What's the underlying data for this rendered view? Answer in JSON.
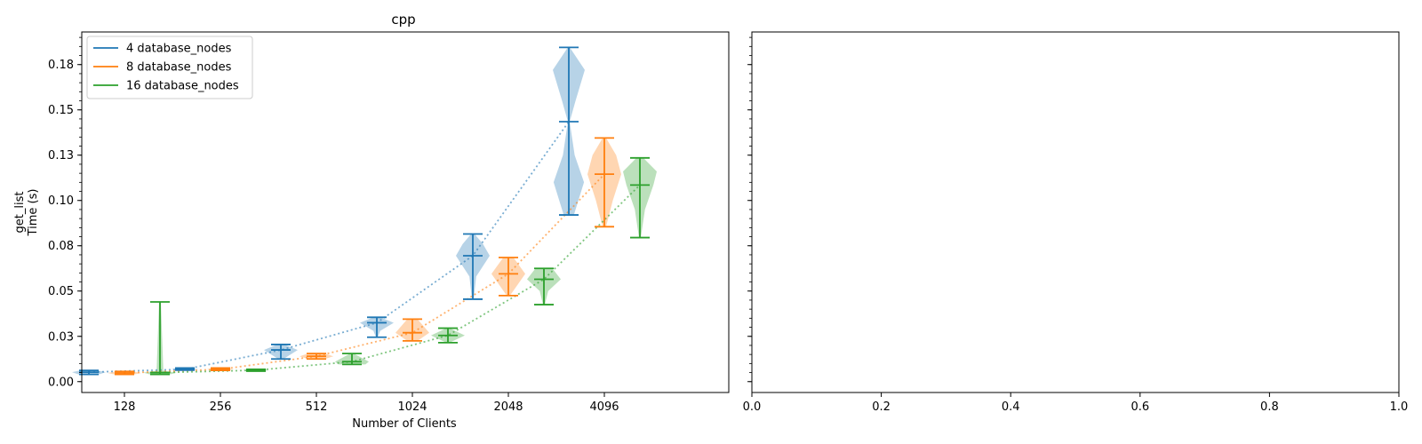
{
  "chart_data": [
    {
      "type": "violin",
      "title": "cpp",
      "xlabel": "Number of Clients",
      "ylabel": [
        "get_list",
        "Time (s)"
      ],
      "x_tick_labels": [
        "128",
        "256",
        "512",
        "1024",
        "2048",
        "4096"
      ],
      "y_tick_labels": [
        "0.00",
        "0.03",
        "0.05",
        "0.08",
        "0.10",
        "0.13",
        "0.15",
        "0.18"
      ],
      "y_tick_values": [
        0.0,
        0.025,
        0.05,
        0.075,
        0.1,
        0.125,
        0.15,
        0.175
      ],
      "ylim": [
        -0.006,
        0.193
      ],
      "legend_position": "upper-left",
      "series": [
        {
          "name": "4 database_nodes",
          "color": "#1f77b4",
          "points": [
            {
              "clients": "128",
              "min": 0.004,
              "median": 0.0052,
              "max": 0.0062,
              "density": [
                [
                  0.004,
                  0.6
                ],
                [
                  0.0052,
                  1.0
                ],
                [
                  0.0062,
                  0.5
                ]
              ]
            },
            {
              "clients": "256",
              "min": 0.0063,
              "median": 0.0068,
              "max": 0.0075,
              "density": [
                [
                  0.0063,
                  0.4
                ],
                [
                  0.0068,
                  0.8
                ],
                [
                  0.0075,
                  0.4
                ]
              ]
            },
            {
              "clients": "512",
              "min": 0.0125,
              "median": 0.0175,
              "max": 0.0205,
              "density": [
                [
                  0.0125,
                  0.15
                ],
                [
                  0.0175,
                  1.0
                ],
                [
                  0.0205,
                  0.2
                ]
              ]
            },
            {
              "clients": "1024",
              "min": 0.0245,
              "median": 0.0325,
              "max": 0.0355,
              "density": [
                [
                  0.0245,
                  0.05
                ],
                [
                  0.028,
                  0.2
                ],
                [
                  0.0325,
                  1.0
                ],
                [
                  0.0355,
                  0.2
                ]
              ]
            },
            {
              "clients": "2048",
              "min": 0.0455,
              "median": 0.0695,
              "max": 0.0815,
              "density": [
                [
                  0.0455,
                  0.05
                ],
                [
                  0.058,
                  0.2
                ],
                [
                  0.0695,
                  1.0
                ],
                [
                  0.076,
                  0.6
                ],
                [
                  0.0815,
                  0.1
                ]
              ]
            },
            {
              "clients": "4096",
              "min": 0.092,
              "median": 0.1435,
              "max": 0.1845,
              "density": [
                [
                  0.092,
                  0.3
                ],
                [
                  0.11,
                  0.9
                ],
                [
                  0.125,
                  0.35
                ],
                [
                  0.1435,
                  0.05
                ],
                [
                  0.155,
                  0.4
                ],
                [
                  0.172,
                  0.95
                ],
                [
                  0.1845,
                  0.05
                ]
              ]
            }
          ]
        },
        {
          "name": "8 database_nodes",
          "color": "#ff7f0e",
          "points": [
            {
              "clients": "128",
              "min": 0.004,
              "median": 0.0048,
              "max": 0.0056,
              "density": [
                [
                  0.004,
                  0.6
                ],
                [
                  0.0048,
                  1.0
                ],
                [
                  0.0056,
                  0.5
                ]
              ]
            },
            {
              "clients": "256",
              "min": 0.0062,
              "median": 0.0068,
              "max": 0.0075,
              "density": [
                [
                  0.0062,
                  0.4
                ],
                [
                  0.0068,
                  0.8
                ],
                [
                  0.0075,
                  0.4
                ]
              ]
            },
            {
              "clients": "512",
              "min": 0.0125,
              "median": 0.014,
              "max": 0.0155,
              "density": [
                [
                  0.0125,
                  0.5
                ],
                [
                  0.014,
                  1.0
                ],
                [
                  0.0155,
                  0.5
                ]
              ]
            },
            {
              "clients": "1024",
              "min": 0.0225,
              "median": 0.027,
              "max": 0.0345,
              "density": [
                [
                  0.0225,
                  0.3
                ],
                [
                  0.027,
                  1.0
                ],
                [
                  0.0345,
                  0.3
                ]
              ]
            },
            {
              "clients": "2048",
              "min": 0.0475,
              "median": 0.0595,
              "max": 0.0685,
              "density": [
                [
                  0.0475,
                  0.1
                ],
                [
                  0.0595,
                  1.0
                ],
                [
                  0.0685,
                  0.3
                ]
              ]
            },
            {
              "clients": "4096",
              "min": 0.0855,
              "median": 0.1145,
              "max": 0.1345,
              "density": [
                [
                  0.0855,
                  0.1
                ],
                [
                  0.1,
                  0.5
                ],
                [
                  0.1145,
                  1.0
                ],
                [
                  0.125,
                  0.7
                ],
                [
                  0.1345,
                  0.1
                ]
              ]
            }
          ]
        },
        {
          "name": "16 database_nodes",
          "color": "#2ca02c",
          "points": [
            {
              "clients": "128",
              "min": 0.004,
              "median": 0.005,
              "max": 0.044,
              "density": [
                [
                  0.004,
                  0.6
                ],
                [
                  0.005,
                  1.0
                ],
                [
                  0.006,
                  0.2
                ],
                [
                  0.044,
                  0.0
                ]
              ]
            },
            {
              "clients": "256",
              "min": 0.0058,
              "median": 0.0063,
              "max": 0.0068,
              "density": [
                [
                  0.0058,
                  0.4
                ],
                [
                  0.0063,
                  0.8
                ],
                [
                  0.0068,
                  0.4
                ]
              ]
            },
            {
              "clients": "512",
              "min": 0.0095,
              "median": 0.011,
              "max": 0.0155,
              "density": [
                [
                  0.0095,
                  0.8
                ],
                [
                  0.011,
                  1.0
                ],
                [
                  0.0155,
                  0.1
                ]
              ]
            },
            {
              "clients": "1024",
              "min": 0.0215,
              "median": 0.0255,
              "max": 0.0295,
              "density": [
                [
                  0.0215,
                  0.1
                ],
                [
                  0.0255,
                  1.0
                ],
                [
                  0.0295,
                  0.1
                ]
              ]
            },
            {
              "clients": "2048",
              "min": 0.0425,
              "median": 0.0565,
              "max": 0.0625,
              "density": [
                [
                  0.0425,
                  0.05
                ],
                [
                  0.05,
                  0.25
                ],
                [
                  0.0565,
                  1.0
                ],
                [
                  0.0625,
                  0.5
                ]
              ]
            },
            {
              "clients": "4096",
              "min": 0.0795,
              "median": 0.1085,
              "max": 0.1235,
              "density": [
                [
                  0.0795,
                  0.05
                ],
                [
                  0.095,
                  0.3
                ],
                [
                  0.1085,
                  0.8
                ],
                [
                  0.116,
                  1.0
                ],
                [
                  0.1235,
                  0.2
                ]
              ]
            }
          ]
        }
      ]
    },
    {
      "type": "empty",
      "x_tick_labels": [
        "0.0",
        "0.2",
        "0.4",
        "0.6",
        "0.8",
        "1.0"
      ],
      "x_tick_values": [
        0.0,
        0.2,
        0.4,
        0.6,
        0.8,
        1.0
      ],
      "xlim": [
        0.0,
        1.0
      ]
    }
  ]
}
